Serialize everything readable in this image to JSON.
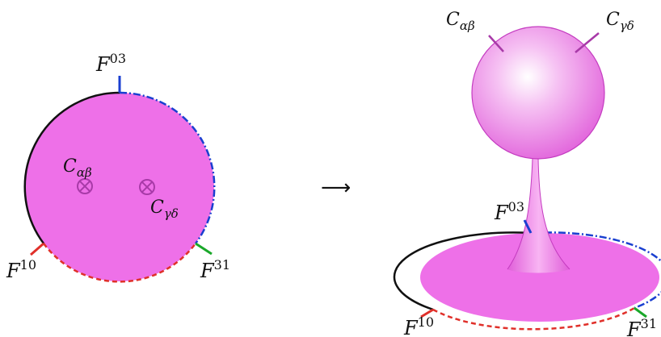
{
  "colors": {
    "surface_fill": "#ee70e8",
    "surface_dark": "#c43cc0",
    "marker": "#a83aa8",
    "boundary_black": "#111111",
    "boundary_blue": "#1a3fd0",
    "boundary_red": "#e0302a",
    "boundary_green": "#1aa82a",
    "background": "#ffffff"
  },
  "left_diagram": {
    "label_F03": {
      "letter": "F",
      "sup": "03"
    },
    "label_F10": {
      "letter": "F",
      "sup": "10"
    },
    "label_F31": {
      "letter": "F",
      "sup": "31"
    },
    "label_Cab": {
      "letter": "C",
      "sub": "αβ"
    },
    "label_Cgd": {
      "letter": "C",
      "sub": "γδ"
    },
    "marker_icon": "circle-times-icon"
  },
  "arrow": {
    "glyph": "⟶"
  },
  "right_diagram": {
    "label_Cab": {
      "letter": "C",
      "sub": "αβ"
    },
    "label_Cgd": {
      "letter": "C",
      "sub": "γδ"
    },
    "label_F03": {
      "letter": "F",
      "sup": "03"
    },
    "label_F10": {
      "letter": "F",
      "sup": "10"
    },
    "label_F31": {
      "letter": "F",
      "sup": "31"
    }
  }
}
